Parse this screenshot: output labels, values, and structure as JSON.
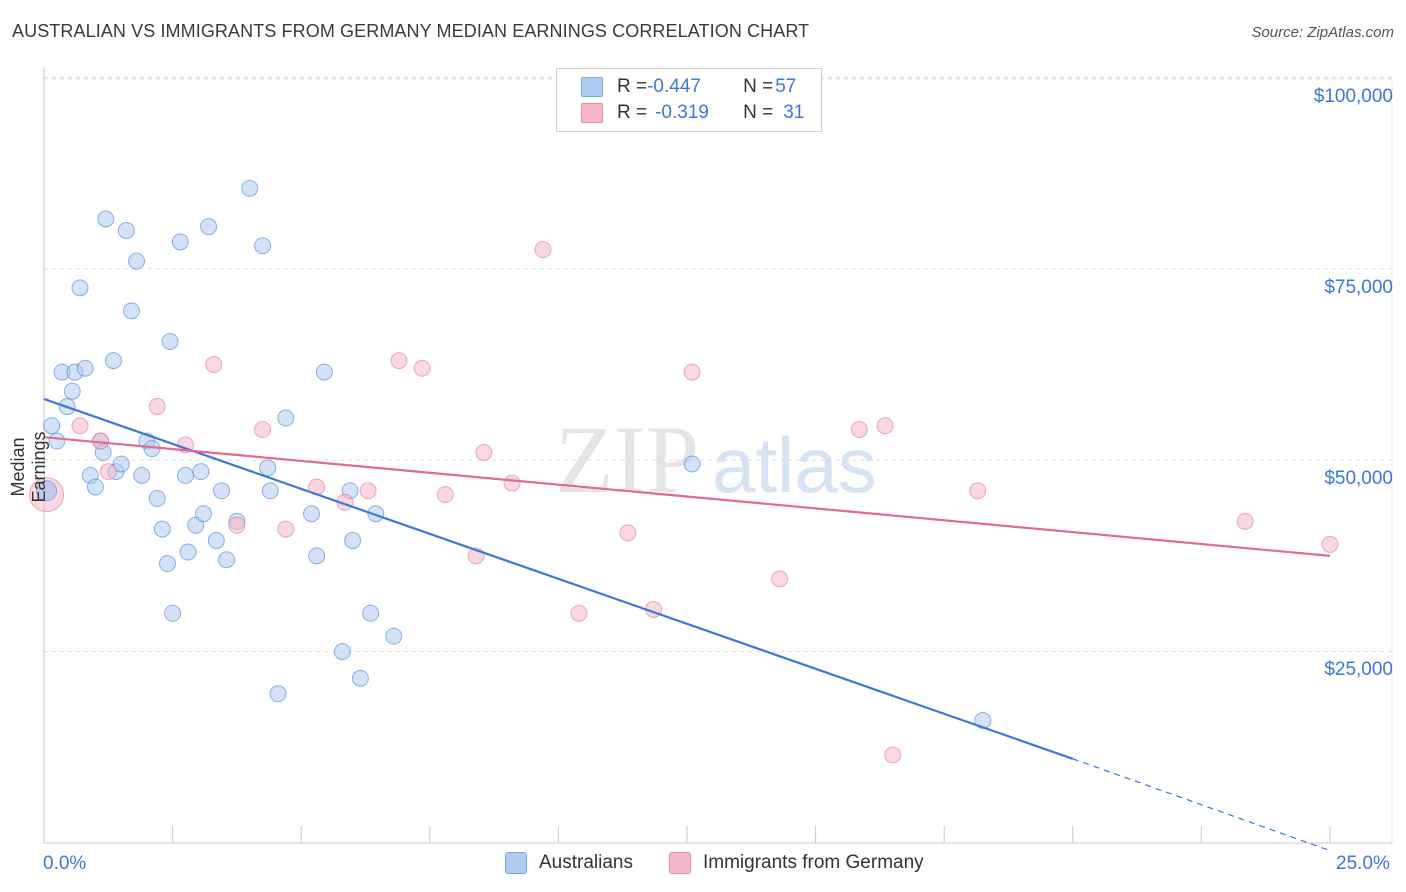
{
  "title": "AUSTRALIAN VS IMMIGRANTS FROM GERMANY MEDIAN EARNINGS CORRELATION CHART",
  "source": "Source: ZipAtlas.com",
  "watermark": {
    "zip": "ZIP",
    "atlas": "atlas"
  },
  "legend_top": {
    "rows": [
      {
        "r_label": "R = ",
        "r_value": "-0.447",
        "n_label": "N = ",
        "n_value": "57",
        "color": "#aecbf1"
      },
      {
        "r_label": "R = ",
        "r_value": "-0.319",
        "n_label": "N = ",
        "n_value": "31",
        "color": "#f5b6c9"
      }
    ]
  },
  "chart_data": {
    "type": "scatter",
    "title": "AUSTRALIAN VS IMMIGRANTS FROM GERMANY MEDIAN EARNINGS CORRELATION CHART",
    "xlabel": "",
    "ylabel": "Median Earnings",
    "xlim": [
      0,
      25
    ],
    "ylim": [
      0,
      102000
    ],
    "x_tick_labels": [
      "0.0%",
      "25.0%"
    ],
    "y_ticks": [
      25000,
      50000,
      75000,
      100000
    ],
    "y_tick_labels": [
      "$25,000",
      "$50,000",
      "$75,000",
      "$100,000"
    ],
    "grid": true,
    "series": [
      {
        "name": "Australians",
        "color": "#3b78d8",
        "fill": "#aecbf1",
        "points": [
          [
            0.05,
            46000
          ],
          [
            0.15,
            54500
          ],
          [
            0.25,
            52500
          ],
          [
            0.35,
            61500
          ],
          [
            0.45,
            57000
          ],
          [
            0.55,
            59000
          ],
          [
            0.6,
            61500
          ],
          [
            0.7,
            72500
          ],
          [
            0.8,
            62000
          ],
          [
            0.9,
            48000
          ],
          [
            1.0,
            46500
          ],
          [
            1.1,
            52500
          ],
          [
            1.15,
            51000
          ],
          [
            1.2,
            81500
          ],
          [
            1.35,
            63000
          ],
          [
            1.4,
            48500
          ],
          [
            1.5,
            49500
          ],
          [
            1.6,
            80000
          ],
          [
            1.7,
            69500
          ],
          [
            1.8,
            76000
          ],
          [
            1.9,
            48000
          ],
          [
            2.0,
            52500
          ],
          [
            2.1,
            51500
          ],
          [
            2.2,
            45000
          ],
          [
            2.3,
            41000
          ],
          [
            2.4,
            36500
          ],
          [
            2.45,
            65500
          ],
          [
            2.5,
            30000
          ],
          [
            2.65,
            78500
          ],
          [
            2.75,
            48000
          ],
          [
            2.8,
            38000
          ],
          [
            2.95,
            41500
          ],
          [
            3.05,
            48500
          ],
          [
            3.1,
            43000
          ],
          [
            3.2,
            80500
          ],
          [
            3.35,
            39500
          ],
          [
            3.45,
            46000
          ],
          [
            3.55,
            37000
          ],
          [
            3.75,
            42000
          ],
          [
            4.0,
            85500
          ],
          [
            4.25,
            78000
          ],
          [
            4.35,
            49000
          ],
          [
            4.4,
            46000
          ],
          [
            4.7,
            55500
          ],
          [
            5.2,
            43000
          ],
          [
            5.3,
            37500
          ],
          [
            5.45,
            61500
          ],
          [
            5.8,
            25000
          ],
          [
            5.95,
            46000
          ],
          [
            6.0,
            39500
          ],
          [
            6.15,
            21500
          ],
          [
            6.35,
            30000
          ],
          [
            6.45,
            43000
          ],
          [
            6.8,
            27000
          ],
          [
            4.55,
            19500
          ],
          [
            12.6,
            49500
          ],
          [
            18.25,
            16000
          ]
        ],
        "trend": {
          "x0": 0,
          "y0": 58000,
          "x1": 20,
          "y1": 11000,
          "dash_to_x": 25,
          "dash_to_y": -1000
        }
      },
      {
        "name": "Immigrants from Germany",
        "color": "#e06a93",
        "fill": "#f5b6c9",
        "points": [
          [
            0.05,
            45500
          ],
          [
            0.7,
            54500
          ],
          [
            1.1,
            52500
          ],
          [
            1.25,
            48500
          ],
          [
            2.2,
            57000
          ],
          [
            2.75,
            52000
          ],
          [
            3.3,
            62500
          ],
          [
            3.75,
            41500
          ],
          [
            4.25,
            54000
          ],
          [
            4.7,
            41000
          ],
          [
            5.3,
            46500
          ],
          [
            5.85,
            44500
          ],
          [
            6.3,
            46000
          ],
          [
            6.9,
            63000
          ],
          [
            7.35,
            62000
          ],
          [
            7.8,
            45500
          ],
          [
            8.4,
            37500
          ],
          [
            8.55,
            51000
          ],
          [
            9.1,
            47000
          ],
          [
            9.7,
            77500
          ],
          [
            10.4,
            30000
          ],
          [
            11.35,
            40500
          ],
          [
            11.85,
            30500
          ],
          [
            12.6,
            61500
          ],
          [
            14.3,
            34500
          ],
          [
            15.85,
            54000
          ],
          [
            16.35,
            54500
          ],
          [
            16.5,
            11500
          ],
          [
            18.15,
            46000
          ],
          [
            23.35,
            42000
          ],
          [
            25.0,
            39000
          ]
        ],
        "trend": {
          "x0": 0,
          "y0": 53000,
          "x1": 25,
          "y1": 37500
        }
      }
    ]
  },
  "bottom_legend": [
    {
      "label": "Australians",
      "color": "#aecbf1"
    },
    {
      "label": "Immigrants from Germany",
      "color": "#f5b6c9"
    }
  ]
}
